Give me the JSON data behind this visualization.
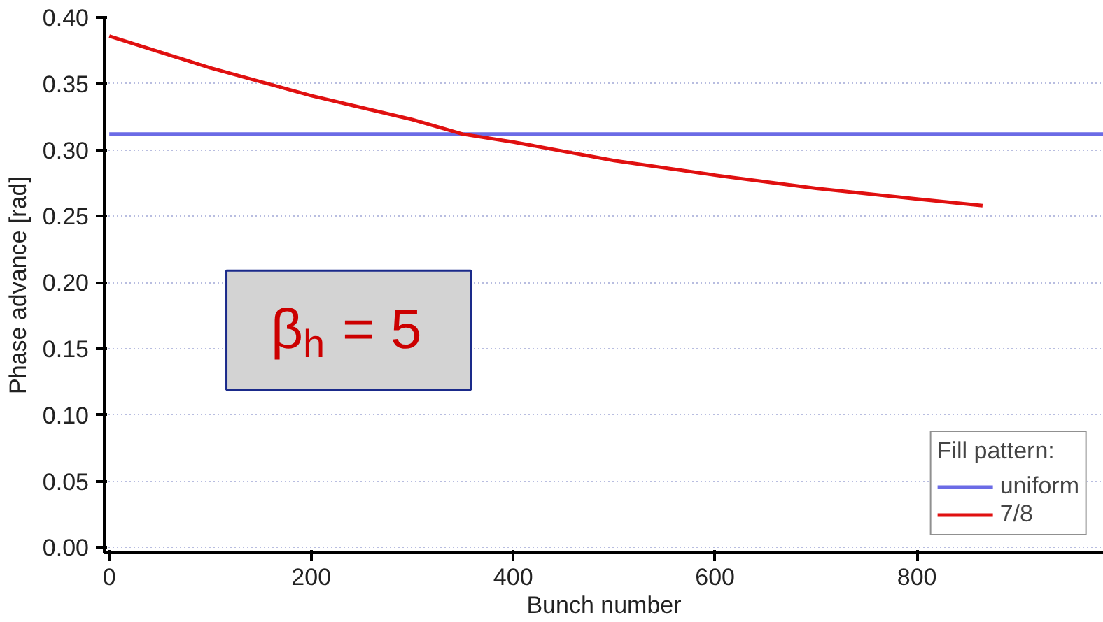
{
  "chart_data": {
    "type": "line",
    "xlabel": "Bunch number",
    "ylabel": "Phase advance [rad]",
    "legend_title": "Fill pattern:",
    "xlim": [
      -5,
      985
    ],
    "ylim": [
      -0.004,
      0.4
    ],
    "xticks": [
      0,
      200,
      400,
      600,
      800
    ],
    "yticks": [
      {
        "value": 0,
        "label": "0.00"
      },
      {
        "value": 0.05,
        "label": "0.05"
      },
      {
        "value": 0.1,
        "label": "0.10"
      },
      {
        "value": 0.15,
        "label": "0.15"
      },
      {
        "value": 0.2,
        "label": "0.20"
      },
      {
        "value": 0.25,
        "label": "0.25"
      },
      {
        "value": 0.3,
        "label": "0.30"
      },
      {
        "value": 0.35,
        "label": "0.35"
      },
      {
        "value": 0.4,
        "label": "0.40"
      }
    ],
    "series": [
      {
        "name": "uniform",
        "color": "#6b6be6",
        "x": [
          0,
          985
        ],
        "values": [
          0.312,
          0.312
        ]
      },
      {
        "name": "7/8",
        "color": "#e01010",
        "x": [
          0,
          100,
          200,
          300,
          350,
          400,
          500,
          600,
          700,
          800,
          865
        ],
        "values": [
          0.386,
          0.362,
          0.341,
          0.323,
          0.312,
          0.306,
          0.292,
          0.281,
          0.271,
          0.263,
          0.258
        ]
      }
    ],
    "annotations": [
      "β$_{h}$ = 5"
    ],
    "grid": "y",
    "legend": "bottom right",
    "line_style": "solid",
    "marker": "none"
  }
}
